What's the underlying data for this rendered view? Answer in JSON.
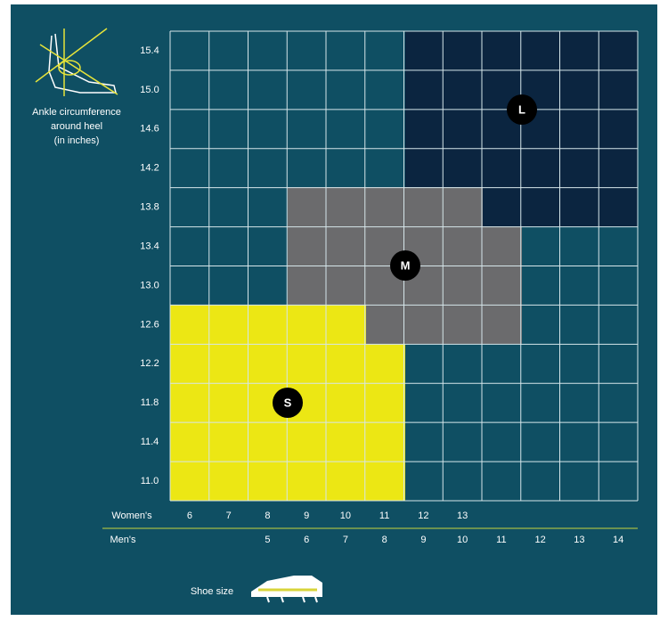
{
  "axis_title": [
    "Ankle circumference",
    "around heel",
    "(in inches)"
  ],
  "ankle_sizes": [
    "15.4",
    "15.0",
    "14.6",
    "14.2",
    "13.8",
    "13.4",
    "13.0",
    "12.6",
    "12.2",
    "11.8",
    "11.4",
    "11.0"
  ],
  "womens": {
    "label": "Women's",
    "sizes": [
      "6",
      "7",
      "8",
      "9",
      "10",
      "11",
      "12",
      "13"
    ]
  },
  "mens": {
    "label": "Men's",
    "sizes": [
      "5",
      "6",
      "7",
      "8",
      "9",
      "10",
      "11",
      "12",
      "13",
      "14"
    ]
  },
  "regions": [
    {
      "label": "L"
    },
    {
      "label": "M"
    },
    {
      "label": "S"
    }
  ],
  "footer": "Shoe size"
}
